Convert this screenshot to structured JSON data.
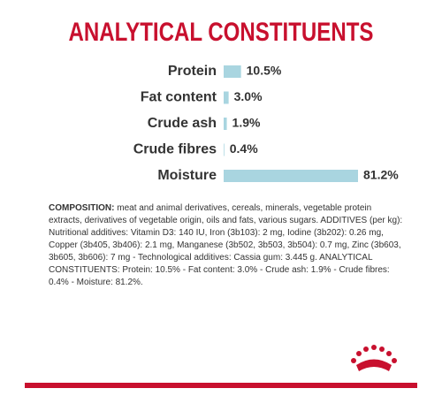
{
  "chart_data": {
    "type": "bar",
    "orientation": "horizontal",
    "title": "ANALYTICAL CONSTITUENTS",
    "categories": [
      "Protein",
      "Fat content",
      "Crude ash",
      "Crude fibres",
      "Moisture"
    ],
    "values": [
      10.5,
      3.0,
      1.9,
      0.4,
      81.2
    ],
    "value_labels": [
      "10.5%",
      "3.0%",
      "1.9%",
      "0.4%",
      "81.2%"
    ],
    "color": "#a9d5e0"
  },
  "composition": {
    "label": "COMPOSITION:",
    "text": "meat and animal derivatives, cereals, minerals, vegetable protein extracts, derivatives of vegetable origin, oils and fats, various sugars. ADDITIVES (per kg): Nutritional additives: Vitamin D3: 140 IU, Iron (3b103): 2 mg, Iodine (3b202): 0.26 mg, Copper (3b405, 3b406): 2.1 mg, Manganese (3b502, 3b503, 3b504): 0.7 mg, Zinc (3b603, 3b605, 3b606): 7 mg - Technological additives: Cassia gum: 3.445 g. ANALYTICAL CONSTITUENTS: Protein: 10.5% - Fat content: 3.0% - Crude ash: 1.9% - Crude fibres: 0.4% - Moisture: 81.2%."
  }
}
